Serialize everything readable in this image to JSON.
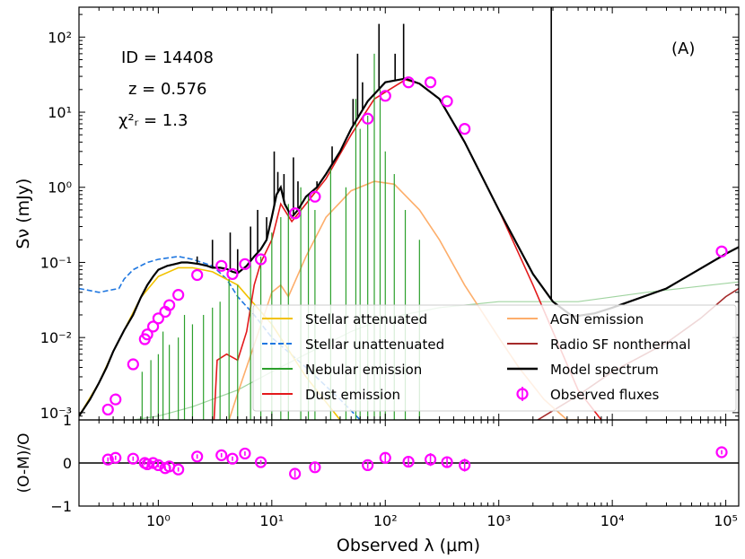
{
  "chart_data": [
    {
      "type": "line",
      "panel": "top",
      "xscale": "log",
      "yscale": "log",
      "xlim": [
        0.2,
        130000
      ],
      "ylim": [
        0.0008,
        250
      ],
      "ylabel": "Sν (mJy)",
      "ytick_labels": [
        "10⁻³",
        "10⁻²",
        "10⁻¹",
        "10⁰",
        "10¹",
        "10²"
      ],
      "yticks": [
        0.001,
        0.01,
        0.1,
        1,
        10,
        100
      ],
      "panel_label": "(A)",
      "annotations": {
        "id_line": "ID = 14408",
        "z_line": "z = 0.576",
        "chi_line": "χ²ᵣ = 1.3"
      },
      "legend_position": "lower-right",
      "legend": [
        {
          "key": "stellar_att",
          "label": "Stellar attenuated",
          "color": "#f2c200",
          "style": "solid"
        },
        {
          "key": "stellar_unatt",
          "label": "Stellar unattenuated",
          "color": "#1f77e0",
          "style": "dashed"
        },
        {
          "key": "nebular",
          "label": "Nebular emission",
          "color": "#2ca02c",
          "style": "solid"
        },
        {
          "key": "dust",
          "label": "Dust emission",
          "color": "#e31a1c",
          "style": "solid"
        },
        {
          "key": "agn",
          "label": "AGN emission",
          "color": "#fdae6b",
          "style": "solid"
        },
        {
          "key": "radio",
          "label": "Radio SF nonthermal",
          "color": "#a52a2a",
          "style": "solid"
        },
        {
          "key": "model",
          "label": "Model spectrum",
          "color": "#000000",
          "style": "solid"
        },
        {
          "key": "obs",
          "label": "Observed fluxes",
          "color": "#ff00ff",
          "style": "marker"
        }
      ],
      "series": [
        {
          "name": "Model spectrum",
          "key": "model",
          "x": [
            0.2,
            0.25,
            0.3,
            0.35,
            0.4,
            0.5,
            0.6,
            0.7,
            0.8,
            0.9,
            1.0,
            1.2,
            1.4,
            1.6,
            1.8,
            2.0,
            2.3,
            2.7,
            3.0,
            3.5,
            4.0,
            4.5,
            5.0,
            6.0,
            7.0,
            8.0,
            9.0,
            10.0,
            11.0,
            12.0,
            13.0,
            15.0,
            17.0,
            20.0,
            25.0,
            30.0,
            40.0,
            50.0,
            70.0,
            100.0,
            150.0,
            200.0,
            300.0,
            500.0,
            1000.0,
            2000.0,
            3000.0,
            4500.0,
            7000.0,
            10000.0,
            30000.0,
            100000.0,
            130000.0
          ],
          "y": [
            0.0009,
            0.0015,
            0.0025,
            0.004,
            0.0065,
            0.0125,
            0.02,
            0.034,
            0.05,
            0.065,
            0.08,
            0.09,
            0.095,
            0.1,
            0.1,
            0.098,
            0.095,
            0.09,
            0.085,
            0.085,
            0.082,
            0.075,
            0.072,
            0.09,
            0.12,
            0.15,
            0.2,
            0.4,
            0.8,
            1.0,
            0.6,
            0.4,
            0.5,
            0.75,
            1.0,
            1.5,
            3.0,
            6.0,
            14.0,
            25.0,
            28.0,
            24.0,
            15.0,
            4.0,
            0.5,
            0.07,
            0.03,
            0.019,
            0.021,
            0.025,
            0.045,
            0.13,
            0.16
          ]
        },
        {
          "name": "Stellar attenuated",
          "key": "stellar_att",
          "x": [
            0.2,
            0.3,
            0.4,
            0.5,
            0.7,
            1.0,
            1.5,
            2.0,
            3.0,
            5.0,
            10.0,
            20.0,
            40.0
          ],
          "y": [
            0.0009,
            0.0025,
            0.0065,
            0.0125,
            0.034,
            0.065,
            0.085,
            0.085,
            0.075,
            0.05,
            0.015,
            0.003,
            0.0008
          ]
        },
        {
          "name": "Stellar unattenuated",
          "key": "stellar_unatt",
          "x": [
            0.2,
            0.3,
            0.45,
            0.5,
            0.6,
            0.8,
            1.0,
            1.5,
            2.0,
            3.0,
            4.0,
            5.0,
            7.0,
            10.0,
            20.0,
            40.0,
            60.0
          ],
          "y": [
            0.045,
            0.04,
            0.045,
            0.06,
            0.08,
            0.1,
            0.11,
            0.12,
            0.11,
            0.09,
            0.06,
            0.035,
            0.02,
            0.01,
            0.004,
            0.0015,
            0.0008
          ]
        },
        {
          "name": "Dust emission",
          "key": "dust",
          "x": [
            3.1,
            3.3,
            4.0,
            5.0,
            6.0,
            7.0,
            8.0,
            10.0,
            12.0,
            15.0,
            20.0,
            30.0,
            50.0,
            80.0,
            150.0,
            200.0,
            300.0,
            500.0,
            1000.0,
            2000.0,
            3000.0,
            5000.0,
            8000.0
          ],
          "y": [
            0.0008,
            0.005,
            0.006,
            0.005,
            0.012,
            0.05,
            0.1,
            0.2,
            0.6,
            0.35,
            0.6,
            1.3,
            5.0,
            15.0,
            27.0,
            24.0,
            15.0,
            4.0,
            0.5,
            0.05,
            0.012,
            0.002,
            0.0008
          ]
        },
        {
          "name": "AGN emission",
          "key": "agn",
          "x": [
            4.2,
            5.0,
            7.0,
            10.0,
            12.0,
            14.0,
            20.0,
            30.0,
            50.0,
            80.0,
            120.0,
            200.0,
            300.0,
            500.0,
            1000.0,
            1500.0,
            2500.0,
            4000.0,
            6000.0,
            7500.0
          ],
          "y": [
            0.0008,
            0.0018,
            0.008,
            0.04,
            0.05,
            0.035,
            0.12,
            0.4,
            0.9,
            1.2,
            1.1,
            0.5,
            0.2,
            0.05,
            0.01,
            0.004,
            0.0015,
            0.0008,
            0.0008,
            0.0008
          ]
        },
        {
          "name": "Radio SF nonthermal",
          "key": "radio",
          "x": [
            2200.0,
            5000.0,
            10000.0,
            30000.0,
            60000.0,
            100000.0,
            130000.0
          ],
          "y": [
            0.0008,
            0.0017,
            0.0035,
            0.0085,
            0.018,
            0.035,
            0.045
          ]
        },
        {
          "name": "Nebular emission (continuum)",
          "key": "nebular",
          "x": [
            0.6,
            1.0,
            2.0,
            3.0,
            5.0,
            10.0,
            20.0,
            50.0,
            100.0,
            300.0,
            1000.0,
            5000.0,
            20000.0,
            130000.0
          ],
          "y": [
            0.0008,
            0.0009,
            0.0012,
            0.0015,
            0.002,
            0.0035,
            0.006,
            0.012,
            0.018,
            0.025,
            0.03,
            0.03,
            0.04,
            0.055
          ]
        }
      ],
      "nebular_lines": [
        {
          "x": 0.72,
          "y": 0.0035
        },
        {
          "x": 0.86,
          "y": 0.005
        },
        {
          "x": 1.0,
          "y": 0.006
        },
        {
          "x": 1.1,
          "y": 0.012
        },
        {
          "x": 1.25,
          "y": 0.008
        },
        {
          "x": 1.5,
          "y": 0.01
        },
        {
          "x": 1.7,
          "y": 0.02
        },
        {
          "x": 2.0,
          "y": 0.015
        },
        {
          "x": 2.5,
          "y": 0.02
        },
        {
          "x": 3.0,
          "y": 0.025
        },
        {
          "x": 3.5,
          "y": 0.03
        },
        {
          "x": 4.2,
          "y": 0.06
        },
        {
          "x": 5.0,
          "y": 0.05
        },
        {
          "x": 6.5,
          "y": 0.1
        },
        {
          "x": 8.0,
          "y": 0.12
        },
        {
          "x": 10.0,
          "y": 0.25
        },
        {
          "x": 12.0,
          "y": 0.4
        },
        {
          "x": 14.0,
          "y": 0.6
        },
        {
          "x": 18.0,
          "y": 1.0
        },
        {
          "x": 21.0,
          "y": 0.8
        },
        {
          "x": 24.0,
          "y": 0.5
        },
        {
          "x": 33.0,
          "y": 1.8
        },
        {
          "x": 45.0,
          "y": 1.0
        },
        {
          "x": 55.0,
          "y": 15.0
        },
        {
          "x": 60.0,
          "y": 6.0
        },
        {
          "x": 70.0,
          "y": 9.0
        },
        {
          "x": 80.0,
          "y": 60.0
        },
        {
          "x": 90.0,
          "y": 20.0
        },
        {
          "x": 100.0,
          "y": 3.0
        },
        {
          "x": 120.0,
          "y": 1.5
        },
        {
          "x": 150.0,
          "y": 0.5
        },
        {
          "x": 200.0,
          "y": 0.2
        }
      ],
      "model_lines": [
        {
          "x": 2.2,
          "y": 0.12
        },
        {
          "x": 3.0,
          "y": 0.2
        },
        {
          "x": 4.3,
          "y": 0.25
        },
        {
          "x": 5.0,
          "y": 0.15
        },
        {
          "x": 6.5,
          "y": 0.3
        },
        {
          "x": 7.5,
          "y": 0.5
        },
        {
          "x": 9.0,
          "y": 0.4
        },
        {
          "x": 10.5,
          "y": 3.0
        },
        {
          "x": 11.3,
          "y": 1.6
        },
        {
          "x": 12.8,
          "y": 1.5
        },
        {
          "x": 15.5,
          "y": 2.5
        },
        {
          "x": 17.0,
          "y": 1.2
        },
        {
          "x": 25.0,
          "y": 1.2
        },
        {
          "x": 34.0,
          "y": 3.5
        },
        {
          "x": 52.0,
          "y": 15.0
        },
        {
          "x": 57.0,
          "y": 60.0
        },
        {
          "x": 63.0,
          "y": 25.0
        },
        {
          "x": 88.0,
          "y": 150.0
        },
        {
          "x": 122.0,
          "y": 60.0
        },
        {
          "x": 145.0,
          "y": 150.0
        },
        {
          "x": 2900.0,
          "y": 250.0
        }
      ],
      "observed_fluxes": {
        "x": [
          0.36,
          0.42,
          0.6,
          0.76,
          0.8,
          0.9,
          1.0,
          1.15,
          1.25,
          1.5,
          2.2,
          3.6,
          4.5,
          5.8,
          8.0,
          16.0,
          24.0,
          70.0,
          100.0,
          160.0,
          250.0,
          350.0,
          500.0,
          92000.0
        ],
        "y": [
          0.0011,
          0.0015,
          0.0044,
          0.0095,
          0.011,
          0.014,
          0.018,
          0.022,
          0.027,
          0.037,
          0.068,
          0.09,
          0.07,
          0.095,
          0.11,
          0.45,
          0.75,
          8.2,
          16.5,
          25.0,
          25.0,
          14.0,
          6.0,
          0.14
        ]
      }
    },
    {
      "type": "scatter",
      "panel": "bottom",
      "xscale": "log",
      "xlim": [
        0.2,
        130000
      ],
      "ylim": [
        -1,
        1
      ],
      "xlabel": "Observed λ (μm)",
      "ylabel": "(O-M)/O",
      "yticks": [
        -1,
        0,
        1
      ],
      "ytick_labels": [
        "−1",
        "0",
        "1"
      ],
      "xticks": [
        1,
        10,
        100,
        1000,
        10000,
        100000
      ],
      "xtick_labels": [
        "10⁰",
        "10¹",
        "10²",
        "10³",
        "10⁴",
        "10⁵"
      ],
      "x": [
        0.36,
        0.42,
        0.6,
        0.76,
        0.8,
        0.9,
        1.0,
        1.15,
        1.25,
        1.5,
        2.2,
        3.6,
        4.5,
        5.8,
        8.0,
        16.0,
        24.0,
        70.0,
        100.0,
        160.0,
        250.0,
        350.0,
        500.0,
        92000.0
      ],
      "y": [
        0.08,
        0.12,
        0.1,
        0.0,
        -0.03,
        0.0,
        -0.05,
        -0.12,
        -0.08,
        -0.15,
        0.15,
        0.18,
        0.1,
        0.22,
        0.02,
        -0.25,
        -0.1,
        -0.05,
        0.12,
        0.03,
        0.08,
        0.02,
        -0.05,
        0.25
      ],
      "yerr": [
        0.05,
        0.05,
        0.05,
        0.05,
        0.05,
        0.05,
        0.05,
        0.05,
        0.05,
        0.05,
        0.05,
        0.05,
        0.05,
        0.05,
        0.05,
        0.08,
        0.08,
        0.08,
        0.1,
        0.1,
        0.15,
        0.1,
        0.15,
        0.05
      ]
    }
  ]
}
